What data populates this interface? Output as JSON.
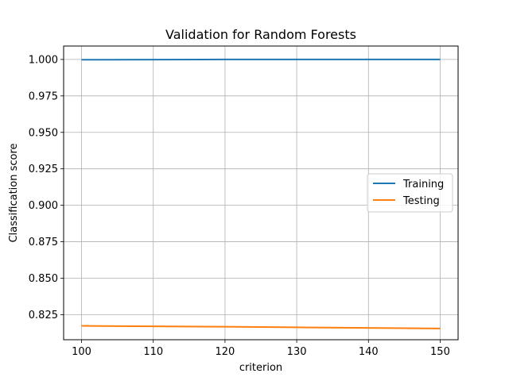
{
  "chart_data": {
    "type": "line",
    "title": "Validation for Random Forests",
    "xlabel": "criterion",
    "ylabel": "Classification score",
    "x": [
      100,
      110,
      120,
      130,
      140,
      150
    ],
    "xticks": [
      100,
      110,
      120,
      130,
      140,
      150
    ],
    "xlim": [
      97.5,
      152.5
    ],
    "yticks": [
      0.825,
      0.85,
      0.875,
      0.9,
      0.925,
      0.95,
      0.975,
      1.0
    ],
    "ytick_labels": [
      "0.825",
      "0.850",
      "0.875",
      "0.900",
      "0.925",
      "0.950",
      "0.975",
      "1.000"
    ],
    "ylim": [
      0.8078,
      1.0092
    ],
    "grid": true,
    "legend_position": "center-right",
    "series": [
      {
        "name": "Training",
        "color": "#1f77b4",
        "values": [
          0.9998,
          0.9999,
          1.0,
          1.0,
          1.0,
          1.0
        ]
      },
      {
        "name": "Testing",
        "color": "#ff7f0e",
        "values": [
          0.8173,
          0.817,
          0.8167,
          0.8163,
          0.8159,
          0.8155
        ]
      }
    ]
  }
}
